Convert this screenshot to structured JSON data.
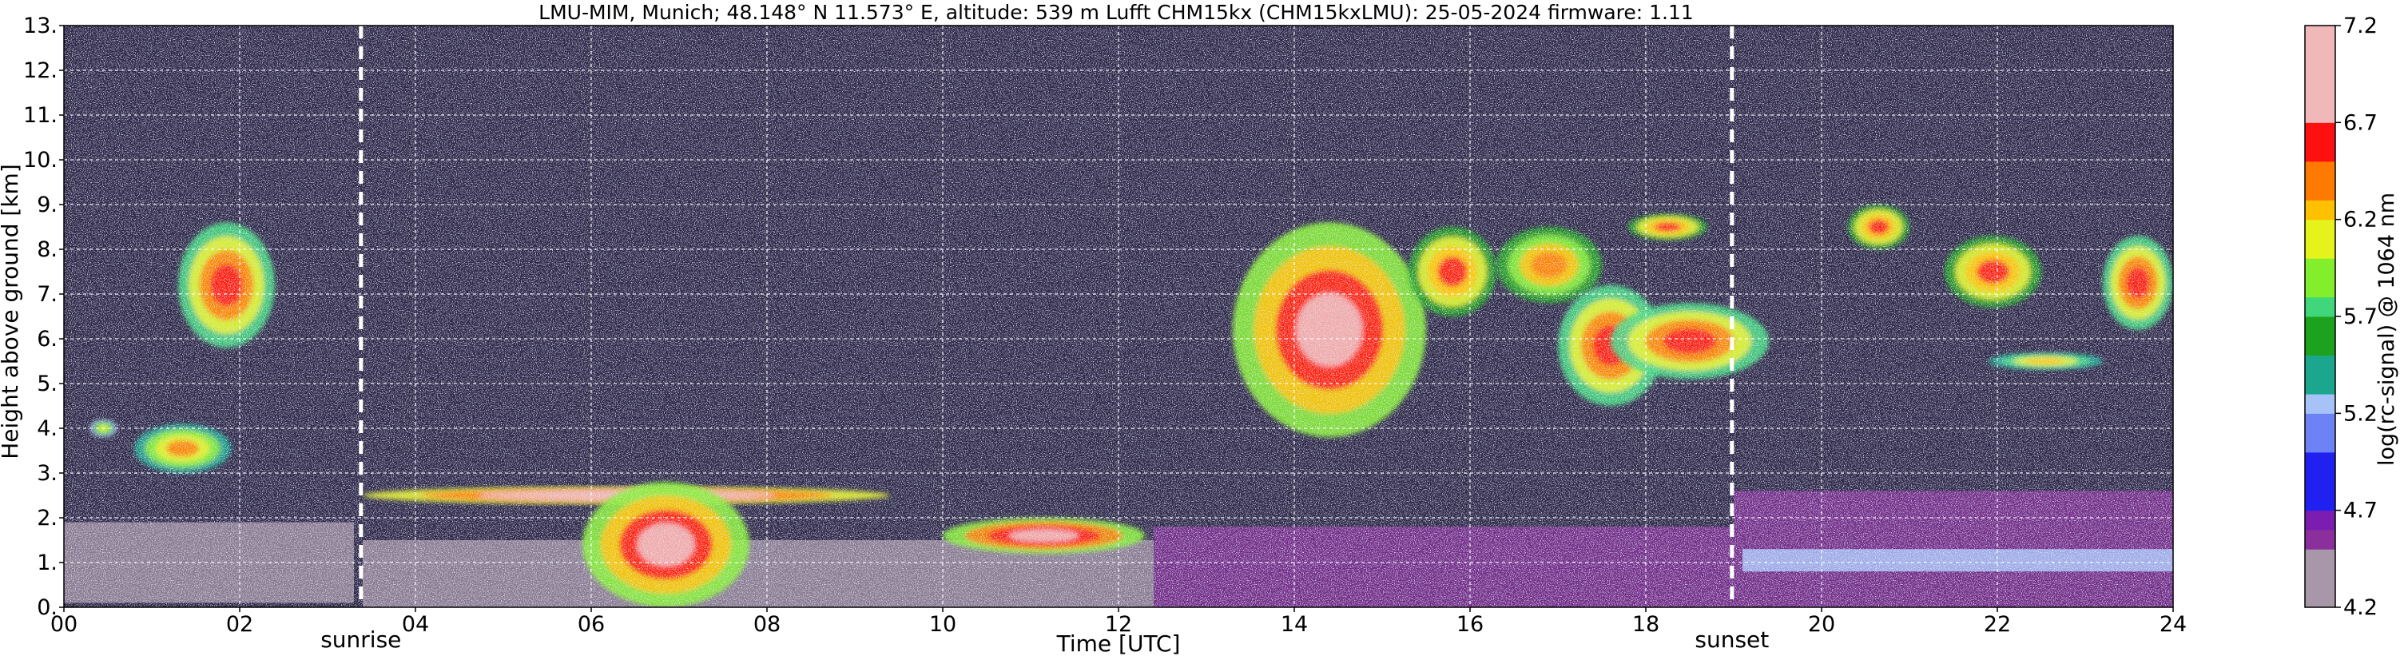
{
  "chart_data": {
    "type": "heatmap",
    "title": "LMU-MIM, Munich; 48.148° N 11.573° E, altitude: 539 m    Lufft CHM15kx (CHM15kxLMU): 25-05-2024    firmware: 1.11",
    "xlabel": "Time [UTC]",
    "ylabel": "Height above ground [km]",
    "xlim": [
      0,
      24
    ],
    "ylim": [
      0,
      13
    ],
    "x_tick_values": [
      0,
      2,
      4,
      6,
      8,
      10,
      12,
      14,
      16,
      18,
      20,
      22,
      24
    ],
    "x_tick_labels": [
      "00",
      "02",
      "04",
      "06",
      "08",
      "10",
      "12",
      "14",
      "16",
      "18",
      "20",
      "22",
      "24"
    ],
    "y_tick_values": [
      0,
      1,
      2,
      3,
      4,
      5,
      6,
      7,
      8,
      9,
      10,
      11,
      12,
      13
    ],
    "y_tick_labels": [
      "0.",
      "1.",
      "2.",
      "3.",
      "4.",
      "5.",
      "6.",
      "7.",
      "8.",
      "9.",
      "10.",
      "11.",
      "12.",
      "13."
    ],
    "grid": true,
    "annotations": [
      {
        "label": "sunrise",
        "x": 3.38
      },
      {
        "label": "sunset",
        "x": 18.98
      }
    ],
    "colorbar": {
      "label": "log(rc-signal) @ 1064 nm",
      "range": [
        4.2,
        7.2
      ],
      "tick_values": [
        4.2,
        4.7,
        5.2,
        5.7,
        6.2,
        6.7,
        7.2
      ],
      "tick_labels": [
        "4.2",
        "4.7",
        "5.2",
        "5.7",
        "6.2",
        "6.7",
        "7.2"
      ]
    },
    "features": [
      {
        "kind": "noise",
        "x": [
          0,
          24
        ],
        "y": [
          0,
          13
        ]
      },
      {
        "kind": "aerosol-layer",
        "x": [
          0,
          3.3
        ],
        "y": [
          0.1,
          1.9
        ],
        "level": 4.4
      },
      {
        "kind": "aerosol-layer",
        "x": [
          3.4,
          12.4
        ],
        "y": [
          0.0,
          1.5
        ],
        "level": 4.2
      },
      {
        "kind": "aerosol-layer",
        "x": [
          12.4,
          19.0
        ],
        "y": [
          0.0,
          1.8
        ],
        "level": 4.6
      },
      {
        "kind": "aerosol-layer",
        "x": [
          19.0,
          24.0
        ],
        "y": [
          0.0,
          2.6
        ],
        "level": 4.5
      },
      {
        "kind": "boundary-layer",
        "x": [
          19.1,
          24.0
        ],
        "y": [
          0.8,
          1.3
        ],
        "level": 5.3
      },
      {
        "kind": "cloud",
        "x": [
          1.3,
          2.4
        ],
        "y": [
          5.8,
          8.6
        ],
        "level": 6.7
      },
      {
        "kind": "cloud",
        "x": [
          0.8,
          1.9
        ],
        "y": [
          3.0,
          4.1
        ],
        "level": 6.4
      },
      {
        "kind": "cloud",
        "x": [
          0.3,
          0.6
        ],
        "y": [
          3.8,
          4.2
        ],
        "level": 6.2
      },
      {
        "kind": "cloud",
        "x": [
          3.4,
          9.4
        ],
        "y": [
          2.3,
          2.7
        ],
        "level": 7.0
      },
      {
        "kind": "cloud",
        "x": [
          5.9,
          7.8
        ],
        "y": [
          0.0,
          2.8
        ],
        "level": 6.8
      },
      {
        "kind": "cloud",
        "x": [
          13.3,
          15.5
        ],
        "y": [
          3.8,
          8.6
        ],
        "level": 6.8
      },
      {
        "kind": "cloud",
        "x": [
          15.3,
          16.3
        ],
        "y": [
          6.5,
          8.5
        ],
        "level": 6.6
      },
      {
        "kind": "cloud",
        "x": [
          16.3,
          17.5
        ],
        "y": [
          6.8,
          8.5
        ],
        "level": 6.5
      },
      {
        "kind": "cloud",
        "x": [
          17.0,
          18.2
        ],
        "y": [
          4.5,
          7.2
        ],
        "level": 6.7
      },
      {
        "kind": "cloud",
        "x": [
          17.6,
          19.4
        ],
        "y": [
          5.1,
          6.8
        ],
        "level": 6.7
      },
      {
        "kind": "cloud",
        "x": [
          17.8,
          18.7
        ],
        "y": [
          8.2,
          8.8
        ],
        "level": 6.6
      },
      {
        "kind": "cloud",
        "x": [
          20.3,
          21.0
        ],
        "y": [
          8.0,
          9.0
        ],
        "level": 6.6
      },
      {
        "kind": "cloud",
        "x": [
          21.4,
          22.5
        ],
        "y": [
          6.7,
          8.3
        ],
        "level": 6.6
      },
      {
        "kind": "cloud",
        "x": [
          23.2,
          24.0
        ],
        "y": [
          6.2,
          8.3
        ],
        "level": 6.7
      },
      {
        "kind": "cloud",
        "x": [
          21.9,
          23.2
        ],
        "y": [
          5.3,
          5.7
        ],
        "level": 6.3
      },
      {
        "kind": "cloud",
        "x": [
          10.0,
          12.3
        ],
        "y": [
          1.2,
          2.0
        ],
        "level": 6.9
      }
    ]
  }
}
